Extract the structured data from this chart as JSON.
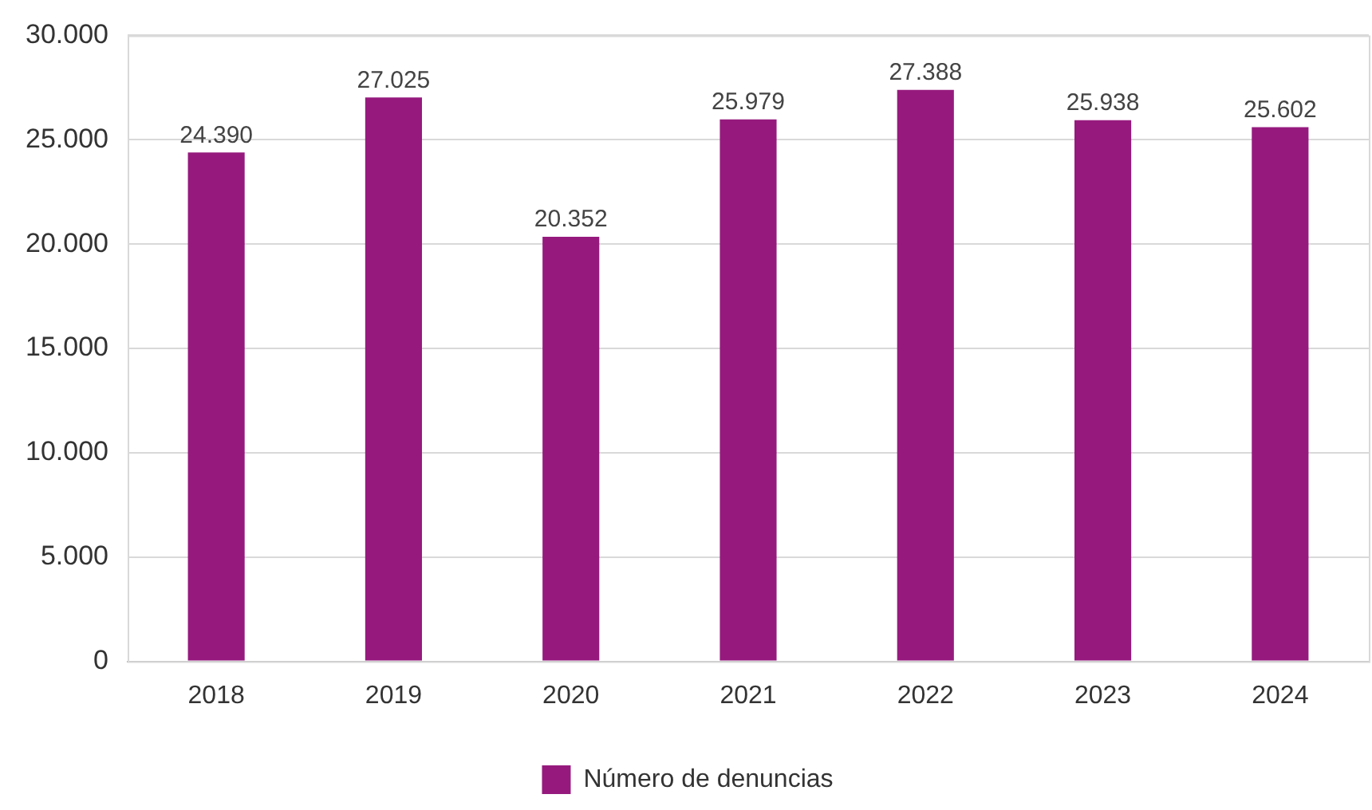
{
  "chart_data": {
    "type": "bar",
    "categories": [
      "2018",
      "2019",
      "2020",
      "2021",
      "2022",
      "2023",
      "2024"
    ],
    "series": [
      {
        "name": "Número de denuncias",
        "color": "#961a7e",
        "values": [
          24390,
          27025,
          20352,
          25979,
          27388,
          25938,
          25602
        ],
        "value_labels": [
          "24.390",
          "27.025",
          "20.352",
          "25.979",
          "27.388",
          "25.938",
          "25.602"
        ]
      }
    ],
    "ylim": [
      0,
      30000
    ],
    "yticks": [
      0,
      {
        "value": 5000,
        "label": "5.000"
      },
      {
        "value": 10000,
        "label": "10.000"
      },
      {
        "value": 15000,
        "label": "15.000"
      },
      {
        "value": 20000,
        "label": "20.000"
      },
      {
        "value": 25000,
        "label": "25.000"
      },
      {
        "value": 30000,
        "label": "30.000"
      }
    ],
    "grid": "y",
    "legend": "bottom"
  }
}
